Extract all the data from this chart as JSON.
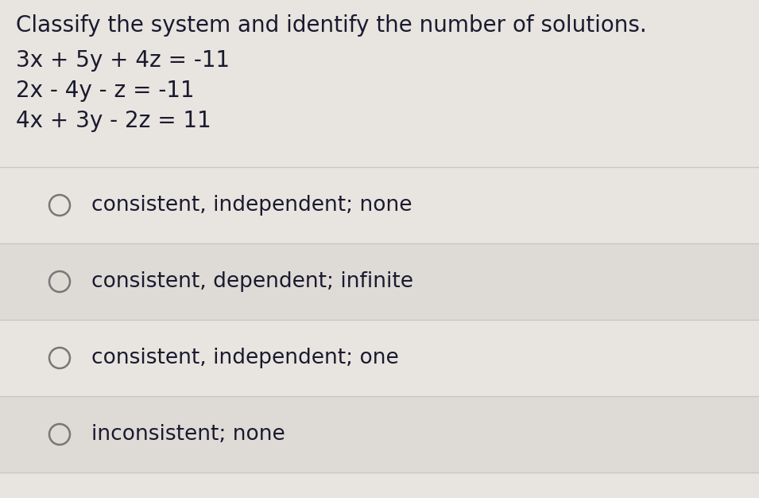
{
  "background_color": "#e8e4e0",
  "title_line": "Classify the system and identify the number of solutions.",
  "equations": [
    "3x + 5y + 4z = -11",
    "2x - 4y - z = -11",
    "4x + 3y - 2z = 11"
  ],
  "options": [
    "consistent, independent; none",
    "consistent, dependent; infinite",
    "consistent, independent; one",
    "inconsistent; none"
  ],
  "title_fontsize": 20,
  "eq_fontsize": 20,
  "option_fontsize": 19,
  "text_color": "#1a1a2e",
  "circle_color": "#777777",
  "divider_color": "#c8c4c0",
  "option_bg_even": "#e8e4e0",
  "option_bg_odd": "#dedad6",
  "fig_width": 9.55,
  "fig_height": 6.26,
  "dpi": 100
}
